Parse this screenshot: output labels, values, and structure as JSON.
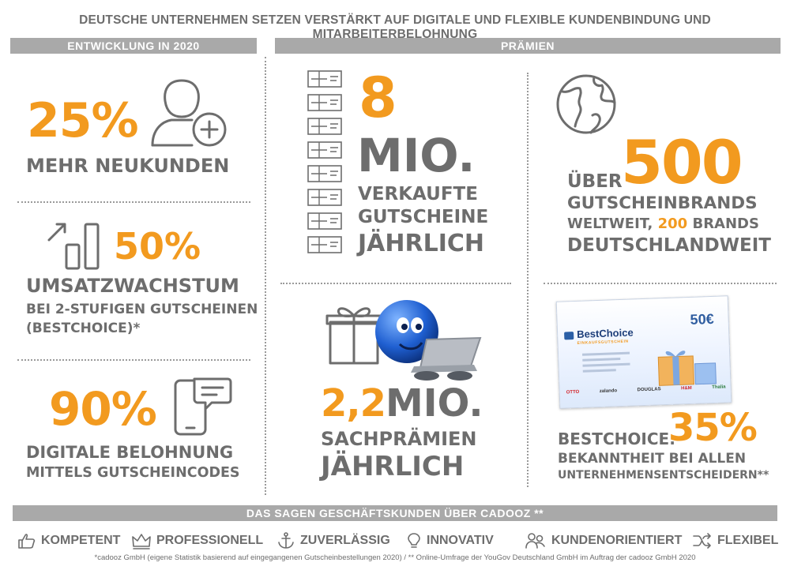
{
  "title": "DEUTSCHE UNTERNEHMEN SETZEN VERSTÄRKT AUF DIGITALE UND FLEXIBLE KUNDENBINDUNG UND MITARBEITERBELOHNUNG",
  "left_section": {
    "header": "ENTWICKLUNG IN 2020",
    "stat1": {
      "value": "25%",
      "label": "MEHR NEUKUNDEN"
    },
    "stat2": {
      "value": "50%",
      "label": "UMSATZWACHSTUM",
      "sub1": "BEI 2-STUFIGEN GUTSCHEINEN",
      "sub2": "(BESTCHOICE)*"
    },
    "stat3": {
      "value": "90%",
      "label1": "DIGITALE BELOHNUNG",
      "label2": "MITTELS GUTSCHEINCODES"
    }
  },
  "right_section": {
    "header": "PRÄMIEN",
    "vouchers": {
      "value": "8",
      "unit": "MIO.",
      "line1": "VERKAUFTE",
      "line2": "GUTSCHEINE",
      "line3": "JÄHRLICH"
    },
    "brands": {
      "prefix": "ÜBER",
      "value": "500",
      "line1": "GUTSCHEINBRANDS",
      "line2_a": "WELTWEIT,",
      "line2_b": "200",
      "line2_c": "BRANDS",
      "line3": "DEUTSCHLANDWEIT"
    },
    "prizes": {
      "value": "2,2",
      "unit": "MIO.",
      "line1": "SACHPRÄMIEN",
      "line2": "JÄHRLICH"
    },
    "card": {
      "brand": "BestChoice",
      "tagline": "EINKAUFSGUTSCHEIN",
      "amount": "50€",
      "logos": [
        "OTTO",
        "zalando",
        "DOUGLAS",
        "H&M",
        "Thalia"
      ]
    },
    "awareness": {
      "prefix": "BESTCHOICE:",
      "value": "35%",
      "line1": "BEKANNTHEIT BEI ALLEN",
      "line2": "UNTERNEHMENSENTSCHEIDERN**"
    }
  },
  "footer": {
    "header": "DAS SAGEN GESCHÄFTSKUNDEN ÜBER CADOOZ **",
    "items": [
      {
        "label": "KOMPETENT",
        "icon": "thumbs-up-icon"
      },
      {
        "label": "PROFESSIONELL",
        "icon": "crown-icon"
      },
      {
        "label": "ZUVERLÄSSIG",
        "icon": "anchor-icon"
      },
      {
        "label": "INNOVATIV",
        "icon": "lightbulb-icon"
      },
      {
        "label": "KUNDENORIENTIERT",
        "icon": "people-icon"
      },
      {
        "label": "FLEXIBEL",
        "icon": "shuffle-icon"
      }
    ],
    "note": "*cadooz GmbH (eigene Statistik basierend auf eingegangenen Gutscheinbestellungen 2020) / ** Online-Umfrage der YouGov Deutschland GmbH im Auftrag der cadooz GmbH 2020"
  },
  "colors": {
    "accent": "#f29a1f",
    "text": "#6d6d6d",
    "bar": "#a9a9a9"
  }
}
